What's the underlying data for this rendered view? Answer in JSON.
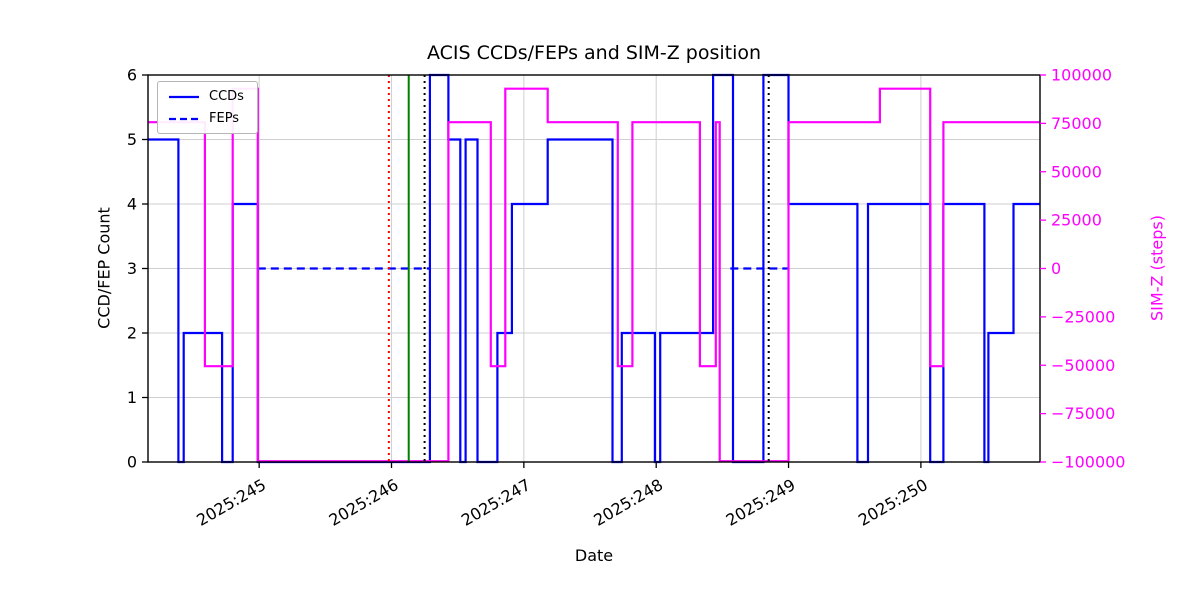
{
  "chart_data": {
    "type": "line",
    "title": "ACIS CCDs/FEPs and SIM-Z position",
    "xlabel": "Date",
    "ylabel_left": "CCD/FEP Count",
    "ylabel_right": "SIM-Z (steps)",
    "legend": [
      "CCDs",
      "FEPs"
    ],
    "legend_position": "upper-left",
    "grid": true,
    "xlim": [
      244.16,
      250.9
    ],
    "ylim_left": [
      0,
      6
    ],
    "ylim_right": [
      -100000,
      100000
    ],
    "xticks": {
      "values": [
        245,
        246,
        247,
        248,
        249,
        250
      ],
      "labels": [
        "2025:245",
        "2025:246",
        "2025:247",
        "2025:248",
        "2025:249",
        "2025:250"
      ]
    },
    "yticks_left": [
      0,
      1,
      2,
      3,
      4,
      5,
      6
    ],
    "yticks_right": {
      "values": [
        100000,
        75000,
        50000,
        25000,
        0,
        -25000,
        -50000,
        -75000,
        -100000
      ],
      "labels": [
        "100000",
        "75000",
        "50000",
        "25000",
        "0",
        "−25000",
        "−50000",
        "−75000",
        "−100000"
      ]
    },
    "colors": {
      "count_lines": "#0000ff",
      "simz_line": "#ff00ff",
      "grid": "#cfcfcf",
      "marker_red": "#ff0000",
      "marker_green": "#008000",
      "marker_black": "#000000"
    },
    "series": [
      {
        "name": "CCDs",
        "axis": "left",
        "style": "solid",
        "color": "#0000ff",
        "segments": [
          [
            244.16,
            244.39,
            5
          ],
          [
            244.39,
            244.43,
            0
          ],
          [
            244.43,
            244.72,
            2
          ],
          [
            244.72,
            244.8,
            0
          ],
          [
            244.8,
            244.99,
            4
          ],
          [
            244.99,
            246.29,
            0
          ],
          [
            246.29,
            246.43,
            6
          ],
          [
            246.43,
            246.52,
            5
          ],
          [
            246.52,
            246.56,
            0
          ],
          [
            246.56,
            246.65,
            5
          ],
          [
            246.65,
            246.8,
            0
          ],
          [
            246.8,
            246.91,
            2
          ],
          [
            246.91,
            247.18,
            4
          ],
          [
            247.18,
            247.67,
            5
          ],
          [
            247.67,
            247.74,
            0
          ],
          [
            247.74,
            247.99,
            2
          ],
          [
            247.99,
            248.03,
            0
          ],
          [
            248.03,
            248.43,
            2
          ],
          [
            248.43,
            248.58,
            6
          ],
          [
            248.58,
            248.81,
            0
          ],
          [
            248.81,
            249.0,
            6
          ],
          [
            249.0,
            249.52,
            4
          ],
          [
            249.52,
            249.6,
            0
          ],
          [
            249.6,
            250.07,
            4
          ],
          [
            250.07,
            250.17,
            0
          ],
          [
            250.17,
            250.48,
            4
          ],
          [
            250.48,
            250.51,
            0
          ],
          [
            250.51,
            250.7,
            2
          ],
          [
            250.7,
            250.9,
            4
          ]
        ]
      },
      {
        "name": "FEPs",
        "axis": "left",
        "style": "dashed",
        "color": "#0000ff",
        "segments": [
          [
            244.99,
            246.29,
            3
          ],
          [
            248.56,
            249.0,
            3
          ]
        ]
      },
      {
        "name": "SIM-Z",
        "axis": "right",
        "style": "solid",
        "color": "#ff00ff",
        "segments": [
          [
            244.16,
            244.59,
            75624
          ],
          [
            244.59,
            244.8,
            -50505
          ],
          [
            244.8,
            244.99,
            92903
          ],
          [
            244.99,
            246.43,
            -99612
          ],
          [
            246.43,
            246.75,
            75624
          ],
          [
            246.75,
            246.86,
            -50505
          ],
          [
            246.86,
            247.18,
            92903
          ],
          [
            247.18,
            247.71,
            75624
          ],
          [
            247.71,
            247.82,
            -50505
          ],
          [
            247.82,
            248.33,
            75624
          ],
          [
            248.33,
            248.45,
            -50505
          ],
          [
            248.45,
            248.48,
            75624
          ],
          [
            248.48,
            249.0,
            -99612
          ],
          [
            249.0,
            249.69,
            75624
          ],
          [
            249.69,
            250.07,
            92903
          ],
          [
            250.07,
            250.17,
            -50505
          ],
          [
            250.17,
            250.9,
            75624
          ]
        ]
      }
    ],
    "vlines": [
      {
        "x": 245.98,
        "color": "#ff0000",
        "style": "dotted",
        "name": "red-dotted-marker"
      },
      {
        "x": 246.13,
        "color": "#008000",
        "style": "solid",
        "name": "green-solid-marker"
      },
      {
        "x": 246.25,
        "color": "#000000",
        "style": "dotted",
        "name": "black-dotted-marker-1"
      },
      {
        "x": 248.85,
        "color": "#000000",
        "style": "dotted",
        "name": "black-dotted-marker-2"
      }
    ]
  }
}
